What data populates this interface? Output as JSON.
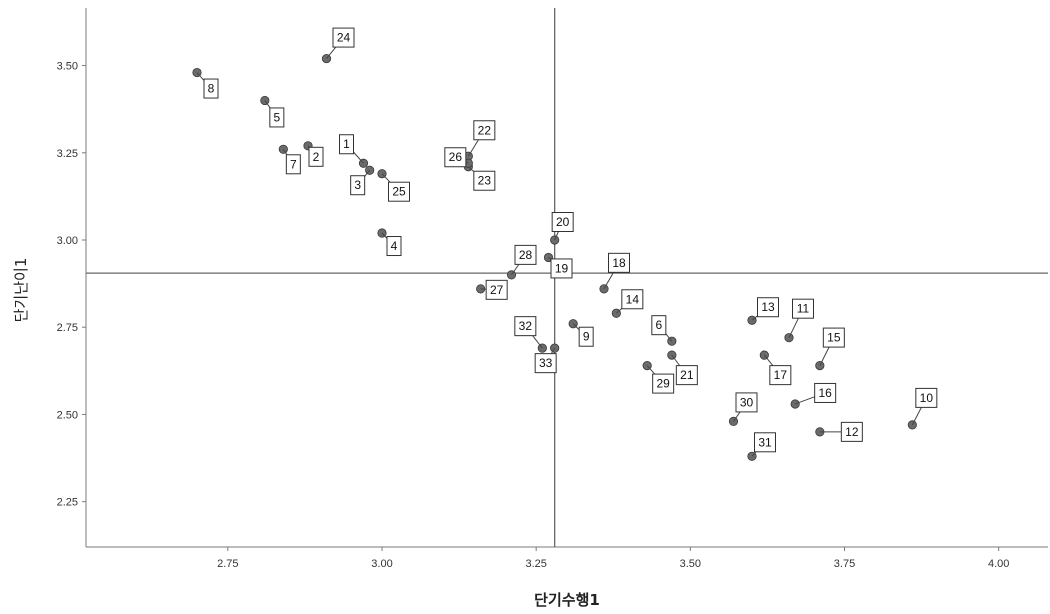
{
  "chart_data": {
    "type": "scatter",
    "xlabel": "단기수행1",
    "ylabel": "단기난이1",
    "xlim": [
      2.52,
      4.08
    ],
    "ylim": [
      2.12,
      3.665
    ],
    "xticks": [
      "2.75",
      "3.00",
      "3.25",
      "3.50",
      "3.75",
      "4.00"
    ],
    "yticks": [
      "2.25",
      "2.50",
      "2.75",
      "3.00",
      "3.25",
      "3.50"
    ],
    "reference_lines": {
      "x": 3.28,
      "y": 2.905
    },
    "grid": false,
    "point_color": "#6b6b6b",
    "points": [
      {
        "label": "1",
        "x": 2.97,
        "y": 3.22
      },
      {
        "label": "2",
        "x": 2.88,
        "y": 3.27
      },
      {
        "label": "3",
        "x": 2.98,
        "y": 3.2
      },
      {
        "label": "4",
        "x": 3.0,
        "y": 3.02
      },
      {
        "label": "5",
        "x": 2.81,
        "y": 3.4
      },
      {
        "label": "6",
        "x": 3.47,
        "y": 2.71
      },
      {
        "label": "7",
        "x": 2.84,
        "y": 3.26
      },
      {
        "label": "8",
        "x": 2.7,
        "y": 3.48
      },
      {
        "label": "9",
        "x": 3.31,
        "y": 2.76
      },
      {
        "label": "10",
        "x": 3.86,
        "y": 2.47
      },
      {
        "label": "11",
        "x": 3.66,
        "y": 2.72
      },
      {
        "label": "12",
        "x": 3.71,
        "y": 2.45
      },
      {
        "label": "13",
        "x": 3.6,
        "y": 2.77
      },
      {
        "label": "14",
        "x": 3.38,
        "y": 2.79
      },
      {
        "label": "15",
        "x": 3.71,
        "y": 2.64
      },
      {
        "label": "16",
        "x": 3.67,
        "y": 2.53
      },
      {
        "label": "17",
        "x": 3.62,
        "y": 2.67
      },
      {
        "label": "18",
        "x": 3.36,
        "y": 2.86
      },
      {
        "label": "19",
        "x": 3.27,
        "y": 2.95
      },
      {
        "label": "20",
        "x": 3.28,
        "y": 3.0
      },
      {
        "label": "21",
        "x": 3.47,
        "y": 2.67
      },
      {
        "label": "22",
        "x": 3.14,
        "y": 3.24
      },
      {
        "label": "23",
        "x": 3.14,
        "y": 3.21
      },
      {
        "label": "24",
        "x": 2.91,
        "y": 3.52
      },
      {
        "label": "25",
        "x": 3.0,
        "y": 3.19
      },
      {
        "label": "26",
        "x": 3.14,
        "y": 3.22
      },
      {
        "label": "27",
        "x": 3.16,
        "y": 2.86
      },
      {
        "label": "28",
        "x": 3.21,
        "y": 2.9
      },
      {
        "label": "29",
        "x": 3.43,
        "y": 2.64
      },
      {
        "label": "30",
        "x": 3.57,
        "y": 2.48
      },
      {
        "label": "31",
        "x": 3.6,
        "y": 2.38
      },
      {
        "label": "32",
        "x": 3.26,
        "y": 2.69
      },
      {
        "label": "33",
        "x": 3.28,
        "y": 2.69
      }
    ]
  }
}
